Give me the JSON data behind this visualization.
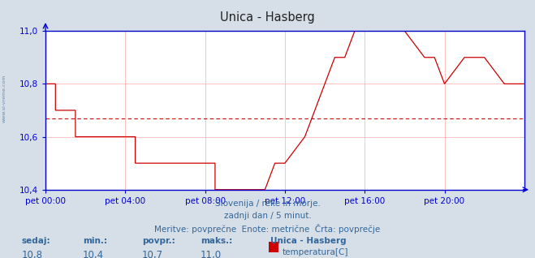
{
  "title": "Unica - Hasberg",
  "bg_color": "#d6dfe8",
  "plot_bg_color": "#ffffff",
  "line_color": "#cc0000",
  "avg_line_color": "#cc0000",
  "avg_value": 10.67,
  "grid_color": "#ffb0b0",
  "axis_color": "#0000cc",
  "text_color": "#336699",
  "title_color": "#222222",
  "ylim": [
    10.4,
    11.0
  ],
  "ytick_labels": [
    "10,4",
    "10,6",
    "10,8",
    "11,0"
  ],
  "ytick_values": [
    10.4,
    10.6,
    10.8,
    11.0
  ],
  "xtick_labels": [
    "pet 00:00",
    "pet 04:00",
    "pet 08:00",
    "pet 12:00",
    "pet 16:00",
    "pet 20:00"
  ],
  "xtick_positions": [
    0,
    48,
    96,
    144,
    192,
    240
  ],
  "total_points": 288,
  "subtitle1": "Slovenija / reke in morje.",
  "subtitle2": "zadnji dan / 5 minut.",
  "subtitle3": "Meritve: povprečne  Enote: metrične  Črta: povprečje",
  "legend_title": "Unica - Hasberg",
  "legend_label": "temperatura[C]",
  "legend_color": "#cc0000",
  "stat_labels": [
    "sedaj:",
    "min.:",
    "povpr.:",
    "maks.:"
  ],
  "stat_values": [
    "10,8",
    "10,4",
    "10,7",
    "11,0"
  ],
  "watermark_side": "www.si-vreme.com",
  "time_series_x": [
    0,
    6,
    6,
    12,
    12,
    18,
    18,
    24,
    24,
    30,
    30,
    36,
    36,
    42,
    42,
    48,
    48,
    54,
    54,
    60,
    60,
    66,
    66,
    72,
    72,
    78,
    78,
    84,
    84,
    90,
    90,
    96,
    96,
    102,
    102,
    108,
    108,
    114,
    114,
    120,
    120,
    126,
    126,
    132,
    132,
    138,
    138,
    144,
    144,
    150,
    150,
    156,
    156,
    162,
    162,
    168,
    168,
    174,
    174,
    180,
    180,
    186,
    186,
    192,
    192,
    204,
    204,
    216,
    216,
    228,
    228,
    234,
    234,
    240,
    240,
    252,
    252,
    264,
    264,
    276,
    276,
    288
  ],
  "time_series_y": [
    10.8,
    10.8,
    10.7,
    10.7,
    10.7,
    10.7,
    10.6,
    10.6,
    10.6,
    10.6,
    10.6,
    10.6,
    10.6,
    10.6,
    10.6,
    10.6,
    10.6,
    10.6,
    10.5,
    10.5,
    10.5,
    10.5,
    10.5,
    10.5,
    10.5,
    10.5,
    10.5,
    10.5,
    10.5,
    10.5,
    10.5,
    10.5,
    10.5,
    10.5,
    10.4,
    10.4,
    10.4,
    10.4,
    10.4,
    10.4,
    10.4,
    10.4,
    10.4,
    10.4,
    10.4,
    10.5,
    10.5,
    10.5,
    10.5,
    10.55,
    10.55,
    10.6,
    10.6,
    10.7,
    10.7,
    10.8,
    10.8,
    10.9,
    10.9,
    10.9,
    10.9,
    11.0,
    11.0,
    11.0,
    11.0,
    11.0,
    11.0,
    11.0,
    11.0,
    10.9,
    10.9,
    10.9,
    10.9,
    10.8,
    10.8,
    10.9,
    10.9,
    10.9,
    10.9,
    10.8,
    10.8,
    10.8
  ]
}
